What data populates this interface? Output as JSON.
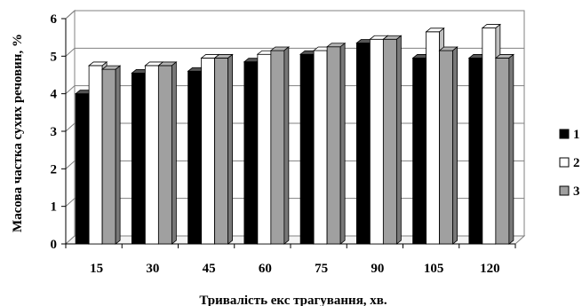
{
  "chart_data": {
    "type": "bar",
    "style": "3d-clustered-column",
    "categories": [
      "15",
      "30",
      "45",
      "60",
      "75",
      "90",
      "105",
      "120"
    ],
    "series": [
      {
        "name": "1",
        "color": "#000000",
        "values": [
          4.0,
          4.55,
          4.6,
          4.85,
          5.05,
          5.35,
          4.95,
          4.95
        ]
      },
      {
        "name": "2",
        "color": "#ffffff",
        "values": [
          4.75,
          4.75,
          4.95,
          5.05,
          5.15,
          5.45,
          5.65,
          5.75
        ]
      },
      {
        "name": "3",
        "color": "#a0a0a0",
        "values": [
          4.65,
          4.75,
          4.95,
          5.15,
          5.25,
          5.45,
          5.15,
          4.95
        ]
      }
    ],
    "yticks": [
      "0",
      "1",
      "2",
      "3",
      "4",
      "5",
      "6"
    ],
    "ylim": [
      0,
      6
    ],
    "ylabel": "Масова частка сухих речовин, %",
    "xlabel": "Тривалість екс трагування, хв.",
    "grid": true,
    "legend_position": "right"
  }
}
